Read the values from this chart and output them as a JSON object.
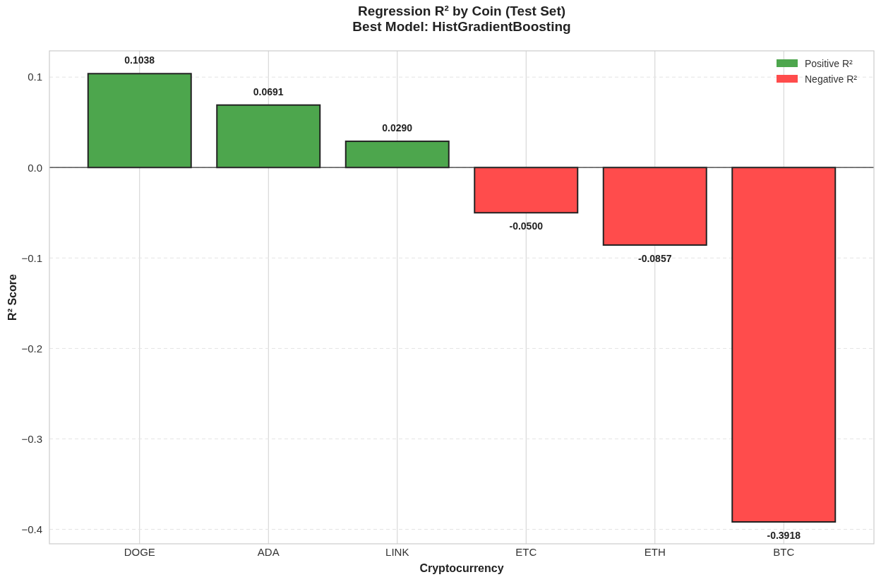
{
  "chart_data": {
    "type": "bar",
    "title": "Regression R² by Coin (Test Set)",
    "subtitle": "Best Model: HistGradientBoosting",
    "xlabel": "Cryptocurrency",
    "ylabel": "R² Score",
    "categories": [
      "DOGE",
      "ADA",
      "LINK",
      "ETC",
      "ETH",
      "BTC"
    ],
    "series": [
      {
        "name": "Positive R²",
        "color": "#4da64d",
        "values": [
          0.1038,
          0.0691,
          0.029,
          null,
          null,
          null
        ],
        "value_labels": [
          "0.1038",
          "0.0691",
          "0.0290",
          null,
          null,
          null
        ]
      },
      {
        "name": "Negative R²",
        "color": "#ff4c4c",
        "values": [
          null,
          null,
          null,
          -0.05,
          -0.0857,
          -0.3918
        ],
        "value_labels": [
          null,
          null,
          null,
          "-0.0500",
          "-0.0857",
          "-0.3918"
        ]
      }
    ],
    "ylim": [
      -0.416,
      0.129
    ],
    "yticks": [
      {
        "value": -0.4,
        "label": "−0.4"
      },
      {
        "value": -0.3,
        "label": "−0.3"
      },
      {
        "value": -0.2,
        "label": "−0.2"
      },
      {
        "value": -0.1,
        "label": "−0.1"
      },
      {
        "value": 0,
        "label": "0.0"
      },
      {
        "value": 0.1,
        "label": "0.1"
      }
    ],
    "ref_lines": [
      {
        "axis": "y",
        "value": 0,
        "color": "#333333"
      }
    ],
    "grid": true,
    "legend": "top right"
  }
}
